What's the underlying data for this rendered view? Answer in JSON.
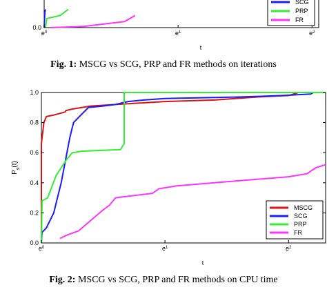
{
  "caption1": {
    "prefix": "Fig. 1:",
    "text": " MSCG vs SCG, PRP and FR methods on iterations"
  },
  "caption2": {
    "prefix": "Fig. 2:",
    "text": " MSCG vs SCG, PRP and FR methods on CPU time"
  },
  "chart_data": [
    {
      "type": "line",
      "title": "",
      "xlabel": "t",
      "ylabel": "",
      "xscale": "log-e",
      "xlim": [
        0,
        2.05
      ],
      "ylim": [
        0,
        1.0
      ],
      "x_ticks": [
        {
          "v": 0,
          "label": "e",
          "exp": "0"
        },
        {
          "v": 1,
          "label": "e",
          "exp": "1"
        },
        {
          "v": 2,
          "label": "e",
          "exp": "2"
        }
      ],
      "y_ticks": [
        {
          "v": 0,
          "label": "0.0"
        }
      ],
      "legend_position": "bottom-right",
      "series": [
        {
          "name": "SCG",
          "color": "#1a1aff",
          "points": [
            [
              0.0,
              0.0
            ],
            [
              0.005,
              0.25
            ],
            [
              0.01,
              0.3
            ]
          ]
        },
        {
          "name": "PRP",
          "color": "#33ee33",
          "points": [
            [
              0.01,
              0.0
            ],
            [
              0.02,
              0.15
            ],
            [
              0.12,
              0.2
            ],
            [
              0.18,
              0.3
            ]
          ]
        },
        {
          "name": "FR",
          "color": "#ff33ff",
          "points": [
            [
              0.05,
              0.0
            ],
            [
              0.3,
              0.02
            ],
            [
              0.6,
              0.1
            ],
            [
              0.68,
              0.2
            ]
          ]
        }
      ]
    },
    {
      "type": "line",
      "title": "",
      "xlabel": "t",
      "ylabel": "P",
      "ylabel_sub": "s",
      "ylabel_suffix": "(t)",
      "xscale": "log-e",
      "xlim": [
        0,
        2.3
      ],
      "ylim": [
        0,
        1.0
      ],
      "x_ticks": [
        {
          "v": 0,
          "label": "e",
          "exp": "0"
        },
        {
          "v": 1,
          "label": "e",
          "exp": "1"
        },
        {
          "v": 2,
          "label": "e",
          "exp": "2"
        }
      ],
      "y_ticks": [
        {
          "v": 0,
          "label": "0.0"
        },
        {
          "v": 0.2,
          "label": "0.2"
        },
        {
          "v": 0.4,
          "label": "0.4"
        },
        {
          "v": 0.6,
          "label": "0.6"
        },
        {
          "v": 0.8,
          "label": "0.8"
        },
        {
          "v": 1.0,
          "label": "1.0"
        }
      ],
      "legend_position": "bottom-right",
      "series": [
        {
          "name": "MSCG",
          "color": "#dd1111",
          "points": [
            [
              0.0,
              0.0
            ],
            [
              0.0,
              0.66
            ],
            [
              0.02,
              0.8
            ],
            [
              0.04,
              0.84
            ],
            [
              0.1,
              0.85
            ],
            [
              0.19,
              0.87
            ],
            [
              0.2,
              0.88
            ],
            [
              0.25,
              0.89
            ],
            [
              0.4,
              0.91
            ],
            [
              0.6,
              0.92
            ],
            [
              0.8,
              0.93
            ],
            [
              1.0,
              0.94
            ],
            [
              1.4,
              0.95
            ],
            [
              1.75,
              0.97
            ],
            [
              2.0,
              0.98
            ],
            [
              2.08,
              1.0
            ],
            [
              2.3,
              1.0
            ]
          ]
        },
        {
          "name": "SCG",
          "color": "#1a1aff",
          "points": [
            [
              0.0,
              0.0
            ],
            [
              0.005,
              0.07
            ],
            [
              0.04,
              0.1
            ],
            [
              0.1,
              0.2
            ],
            [
              0.16,
              0.4
            ],
            [
              0.2,
              0.57
            ],
            [
              0.23,
              0.7
            ],
            [
              0.26,
              0.8
            ],
            [
              0.32,
              0.85
            ],
            [
              0.38,
              0.9
            ],
            [
              0.5,
              0.91
            ],
            [
              0.6,
              0.92
            ],
            [
              0.7,
              0.94
            ],
            [
              0.83,
              0.95
            ],
            [
              1.0,
              0.96
            ],
            [
              1.3,
              0.965
            ],
            [
              1.6,
              0.97
            ],
            [
              1.95,
              0.98
            ],
            [
              2.18,
              0.99
            ],
            [
              2.2,
              1.0
            ],
            [
              2.3,
              1.0
            ]
          ]
        },
        {
          "name": "PRP",
          "color": "#33ee33",
          "points": [
            [
              0.0,
              0.0
            ],
            [
              0.005,
              0.28
            ],
            [
              0.05,
              0.3
            ],
            [
              0.12,
              0.45
            ],
            [
              0.16,
              0.5
            ],
            [
              0.2,
              0.55
            ],
            [
              0.25,
              0.6
            ],
            [
              0.33,
              0.61
            ],
            [
              0.64,
              0.62
            ],
            [
              0.67,
              0.66
            ],
            [
              0.67,
              1.0
            ],
            [
              2.3,
              1.0
            ]
          ]
        },
        {
          "name": "FR",
          "color": "#ff33ff",
          "points": [
            [
              0.15,
              0.03
            ],
            [
              0.2,
              0.05
            ],
            [
              0.3,
              0.08
            ],
            [
              0.4,
              0.15
            ],
            [
              0.5,
              0.22
            ],
            [
              0.55,
              0.25
            ],
            [
              0.6,
              0.3
            ],
            [
              0.7,
              0.31
            ],
            [
              0.9,
              0.33
            ],
            [
              0.95,
              0.36
            ],
            [
              1.1,
              0.38
            ],
            [
              1.4,
              0.4
            ],
            [
              1.7,
              0.42
            ],
            [
              2.0,
              0.44
            ],
            [
              2.15,
              0.46
            ],
            [
              2.22,
              0.5
            ],
            [
              2.3,
              0.52
            ]
          ]
        }
      ]
    }
  ]
}
